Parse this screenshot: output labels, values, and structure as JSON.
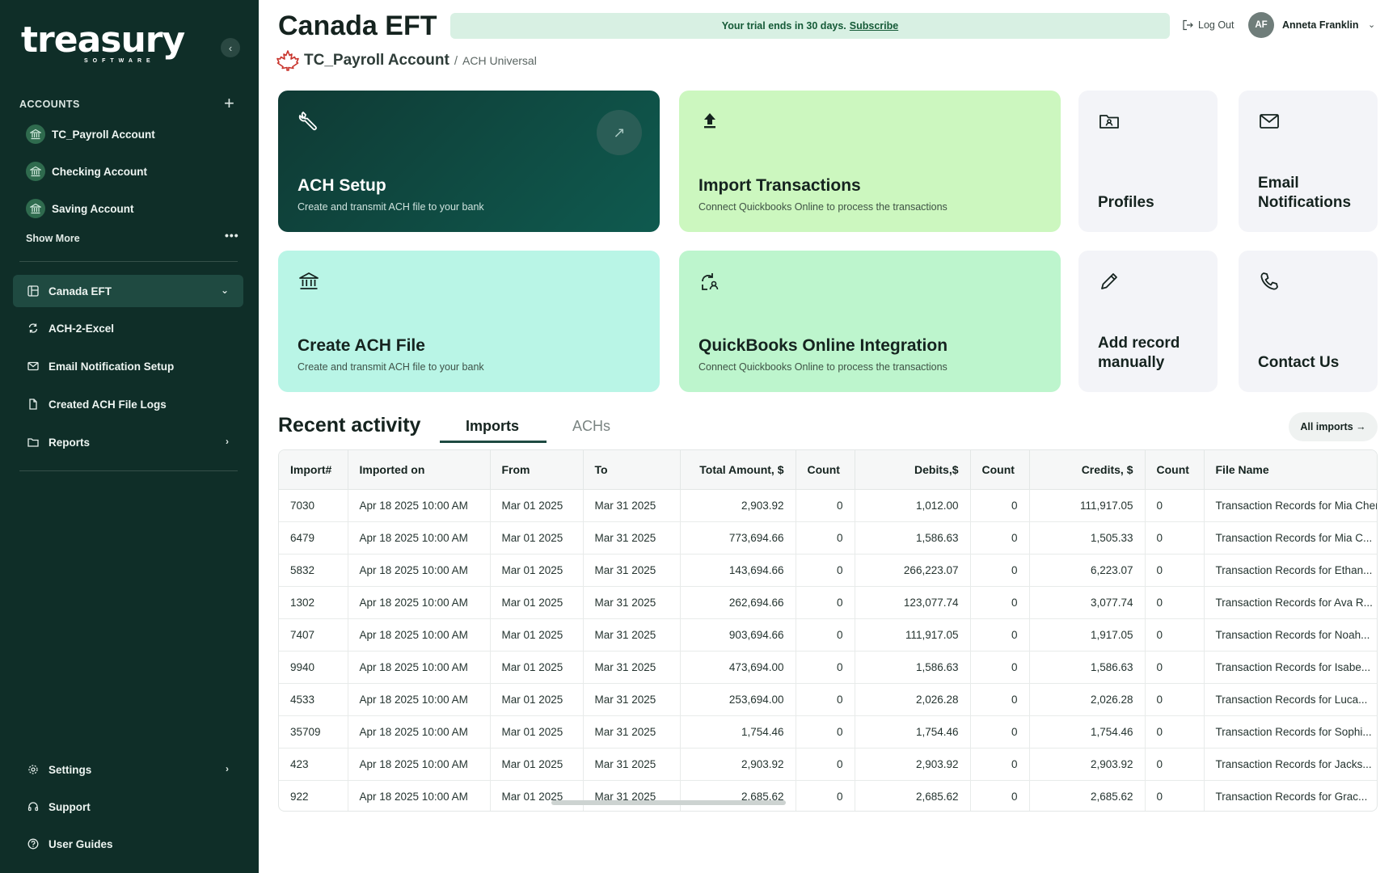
{
  "brand": {
    "logo_text": "treasury",
    "logo_sub": "SOFTWARE"
  },
  "sidebar": {
    "accounts_heading": "ACCOUNTS",
    "accounts": [
      {
        "label": "TC_Payroll Account"
      },
      {
        "label": "Checking Account"
      },
      {
        "label": "Saving Account"
      }
    ],
    "show_more": "Show More",
    "nav": [
      {
        "label": "Canada EFT",
        "icon": "dashboard-icon",
        "active": true
      },
      {
        "label": "ACH-2-Excel",
        "icon": "sync-icon"
      },
      {
        "label": "Email Notification Setup",
        "icon": "mail-icon"
      },
      {
        "label": "Created ACH File Logs",
        "icon": "file-icon"
      },
      {
        "label": "Reports",
        "icon": "folder-icon"
      }
    ],
    "bottom": [
      {
        "label": "Settings",
        "icon": "gear-icon"
      },
      {
        "label": "Support",
        "icon": "headset-icon"
      },
      {
        "label": "User Guides",
        "icon": "help-icon"
      }
    ]
  },
  "header": {
    "title": "Canada EFT",
    "trial_text": "Your trial ends in 30 days.",
    "trial_link": "Subscribe",
    "logout": "Log Out",
    "user_initials": "AF",
    "user_name": "Anneta Franklin",
    "breadcrumb_main": "TC_Payroll Account",
    "breadcrumb_sep": "/",
    "breadcrumb_sub": "ACH Universal"
  },
  "tiles": {
    "ach_setup": {
      "title": "ACH Setup",
      "desc": "Create and transmit ACH file to your bank"
    },
    "import_tx": {
      "title": "Import Transactions",
      "desc": "Connect Quickbooks Online to process the transactions"
    },
    "profiles": {
      "title": "Profiles"
    },
    "email_notif": {
      "title_line1": "Email",
      "title_line2": "Notifications"
    },
    "create_ach": {
      "title": "Create ACH File",
      "desc": "Create and transmit ACH file to your bank"
    },
    "qbo": {
      "title": "QuickBooks Online Integration",
      "desc": "Connect Quickbooks Online to process the transactions"
    },
    "add_record": {
      "title_line1": "Add record",
      "title_line2": "manually"
    },
    "contact": {
      "title": "Contact Us"
    }
  },
  "colors": {
    "sidebar_bg": "#0f2e28",
    "tile_dark": "#0f4a42",
    "tile_lime": "#ccf7bf",
    "tile_mint": "#b9f5e6",
    "tile_gray": "#f3f4f8"
  },
  "recent": {
    "title": "Recent activity",
    "tabs": [
      "Imports",
      "ACHs"
    ],
    "all_imports": "All imports →",
    "columns": [
      "Import#",
      "Imported on",
      "From",
      "To",
      "Total Amount, $",
      "Count",
      "Debits,$",
      "Count",
      "Credits, $",
      "Count",
      "File Name"
    ],
    "rows": [
      [
        "7030",
        "Apr 18 2025 10:00 AM",
        "Mar 01 2025",
        "Mar 31 2025",
        "2,903.92",
        "0",
        "1,012.00",
        "0",
        "111,917.05",
        "0",
        "Transaction Records for Mia Chen"
      ],
      [
        "6479",
        "Apr 18 2025 10:00 AM",
        "Mar 01 2025",
        "Mar 31 2025",
        "773,694.66",
        "0",
        "1,586.63",
        "0",
        "1,505.33",
        "0",
        "Transaction Records for Mia C..."
      ],
      [
        "5832",
        "Apr 18 2025 10:00 AM",
        "Mar 01 2025",
        "Mar 31 2025",
        "143,694.66",
        "0",
        "266,223.07",
        "0",
        "6,223.07",
        "0",
        "Transaction Records for Ethan..."
      ],
      [
        "1302",
        "Apr 18 2025 10:00 AM",
        "Mar 01 2025",
        "Mar 31 2025",
        "262,694.66",
        "0",
        "123,077.74",
        "0",
        "3,077.74",
        "0",
        "Transaction Records for Ava R..."
      ],
      [
        "7407",
        "Apr 18 2025 10:00 AM",
        "Mar 01 2025",
        "Mar 31 2025",
        "903,694.66",
        "0",
        "111,917.05",
        "0",
        "1,917.05",
        "0",
        "Transaction Records for Noah..."
      ],
      [
        "9940",
        "Apr 18 2025 10:00 AM",
        "Mar 01 2025",
        "Mar 31 2025",
        "473,694.00",
        "0",
        "1,586.63",
        "0",
        "1,586.63",
        "0",
        "Transaction Records for Isabe..."
      ],
      [
        "4533",
        "Apr 18 2025 10:00 AM",
        "Mar 01 2025",
        "Mar 31 2025",
        "253,694.00",
        "0",
        "2,026.28",
        "0",
        "2,026.28",
        "0",
        "Transaction Records for Luca..."
      ],
      [
        "35709",
        "Apr 18 2025 10:00 AM",
        "Mar 01 2025",
        "Mar 31 2025",
        "1,754.46",
        "0",
        "1,754.46",
        "0",
        "1,754.46",
        "0",
        "Transaction Records for Sophi..."
      ],
      [
        "423",
        "Apr 18 2025 10:00 AM",
        "Mar 01 2025",
        "Mar 31 2025",
        "2,903.92",
        "0",
        "2,903.92",
        "0",
        "2,903.92",
        "0",
        "Transaction Records for Jacks..."
      ],
      [
        "922",
        "Apr 18 2025 10:00 AM",
        "Mar 01 2025",
        "Mar 31 2025",
        "2,685.62",
        "0",
        "2,685.62",
        "0",
        "2,685.62",
        "0",
        "Transaction Records for Grac..."
      ]
    ]
  }
}
